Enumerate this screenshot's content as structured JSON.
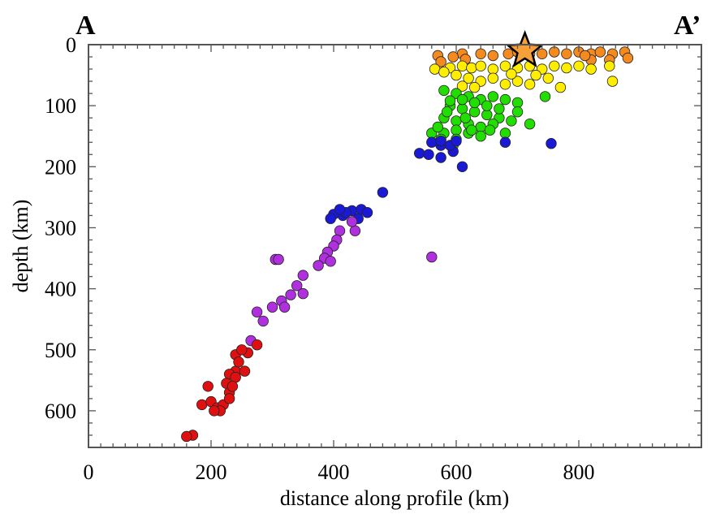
{
  "chart_data": {
    "type": "scatter",
    "xlabel": "distance along profile (km)",
    "ylabel": "depth (km)",
    "xlim": [
      0,
      1000
    ],
    "ylim": [
      0,
      660
    ],
    "y_inverted": true,
    "grid": false,
    "x_ticks": [
      0,
      200,
      400,
      600,
      800
    ],
    "y_ticks": [
      0,
      100,
      200,
      300,
      400,
      500,
      600
    ],
    "corner_labels": {
      "left": "A",
      "right": "A’"
    },
    "star": {
      "x": 712,
      "y": 10,
      "color": "#f7a03a"
    },
    "series": [
      {
        "color": "#f58a1f",
        "points": [
          [
            570,
            18
          ],
          [
            610,
            15
          ],
          [
            640,
            15
          ],
          [
            660,
            18
          ],
          [
            685,
            15
          ],
          [
            700,
            12
          ],
          [
            720,
            15
          ],
          [
            740,
            15
          ],
          [
            760,
            12
          ],
          [
            780,
            15
          ],
          [
            800,
            12
          ],
          [
            820,
            15
          ],
          [
            835,
            12
          ],
          [
            855,
            15
          ],
          [
            875,
            12
          ],
          [
            880,
            22
          ],
          [
            850,
            25
          ],
          [
            820,
            25
          ],
          [
            810,
            18
          ],
          [
            615,
            24
          ],
          [
            595,
            20
          ],
          [
            575,
            28
          ]
        ]
      },
      {
        "color": "#ffee00",
        "points": [
          [
            565,
            40
          ],
          [
            590,
            38
          ],
          [
            610,
            35
          ],
          [
            625,
            38
          ],
          [
            640,
            35
          ],
          [
            660,
            40
          ],
          [
            680,
            35
          ],
          [
            700,
            38
          ],
          [
            720,
            35
          ],
          [
            740,
            40
          ],
          [
            760,
            35
          ],
          [
            780,
            38
          ],
          [
            800,
            35
          ],
          [
            820,
            40
          ],
          [
            850,
            35
          ],
          [
            855,
            60
          ],
          [
            770,
            70
          ],
          [
            750,
            55
          ],
          [
            720,
            65
          ],
          [
            700,
            60
          ],
          [
            680,
            65
          ],
          [
            660,
            55
          ],
          [
            640,
            60
          ],
          [
            620,
            55
          ],
          [
            600,
            50
          ],
          [
            580,
            45
          ],
          [
            630,
            70
          ],
          [
            610,
            68
          ],
          [
            690,
            48
          ],
          [
            730,
            50
          ]
        ]
      },
      {
        "color": "#22dd00",
        "points": [
          [
            580,
            75
          ],
          [
            600,
            80
          ],
          [
            620,
            85
          ],
          [
            640,
            90
          ],
          [
            660,
            85
          ],
          [
            680,
            90
          ],
          [
            700,
            95
          ],
          [
            720,
            130
          ],
          [
            745,
            85
          ],
          [
            590,
            100
          ],
          [
            610,
            105
          ],
          [
            630,
            110
          ],
          [
            650,
            115
          ],
          [
            670,
            120
          ],
          [
            690,
            125
          ],
          [
            580,
            120
          ],
          [
            600,
            125
          ],
          [
            620,
            130
          ],
          [
            640,
            135
          ],
          [
            660,
            130
          ],
          [
            580,
            145
          ],
          [
            600,
            140
          ],
          [
            620,
            145
          ],
          [
            600,
            155
          ],
          [
            575,
            155
          ],
          [
            560,
            145
          ],
          [
            595,
            165
          ],
          [
            640,
            150
          ],
          [
            680,
            145
          ],
          [
            650,
            100
          ],
          [
            630,
            95
          ],
          [
            610,
            90
          ],
          [
            590,
            92
          ],
          [
            670,
            105
          ],
          [
            700,
            110
          ],
          [
            615,
            120
          ],
          [
            625,
            140
          ],
          [
            655,
            140
          ],
          [
            570,
            135
          ],
          [
            585,
            110
          ]
        ]
      },
      {
        "color": "#1a1ad6",
        "points": [
          [
            540,
            178
          ],
          [
            555,
            180
          ],
          [
            575,
            185
          ],
          [
            595,
            175
          ],
          [
            610,
            200
          ],
          [
            575,
            165
          ],
          [
            560,
            160
          ],
          [
            575,
            158
          ],
          [
            590,
            165
          ],
          [
            600,
            158
          ],
          [
            680,
            160
          ],
          [
            755,
            162
          ],
          [
            480,
            242
          ],
          [
            430,
            272
          ],
          [
            415,
            280
          ],
          [
            440,
            285
          ],
          [
            420,
            275
          ],
          [
            400,
            278
          ],
          [
            410,
            270
          ],
          [
            445,
            270
          ],
          [
            455,
            275
          ],
          [
            395,
            285
          ]
        ]
      },
      {
        "color": "#b030e0",
        "points": [
          [
            560,
            348
          ],
          [
            435,
            305
          ],
          [
            430,
            290
          ],
          [
            410,
            305
          ],
          [
            405,
            320
          ],
          [
            400,
            330
          ],
          [
            390,
            340
          ],
          [
            385,
            350
          ],
          [
            395,
            355
          ],
          [
            375,
            362
          ],
          [
            350,
            378
          ],
          [
            340,
            395
          ],
          [
            330,
            410
          ],
          [
            315,
            420
          ],
          [
            300,
            430
          ],
          [
            275,
            438
          ],
          [
            285,
            453
          ],
          [
            265,
            485
          ],
          [
            350,
            408
          ],
          [
            305,
            352
          ],
          [
            310,
            352
          ],
          [
            320,
            430
          ]
        ]
      },
      {
        "color": "#e01010",
        "points": [
          [
            275,
            492
          ],
          [
            260,
            505
          ],
          [
            240,
            508
          ],
          [
            250,
            500
          ],
          [
            240,
            535
          ],
          [
            230,
            540
          ],
          [
            225,
            555
          ],
          [
            255,
            535
          ],
          [
            240,
            545
          ],
          [
            230,
            570
          ],
          [
            195,
            560
          ],
          [
            185,
            590
          ],
          [
            200,
            585
          ],
          [
            210,
            595
          ],
          [
            220,
            590
          ],
          [
            215,
            600
          ],
          [
            230,
            580
          ],
          [
            170,
            640
          ],
          [
            160,
            642
          ],
          [
            205,
            600
          ],
          [
            245,
            520
          ],
          [
            235,
            560
          ]
        ]
      }
    ]
  }
}
